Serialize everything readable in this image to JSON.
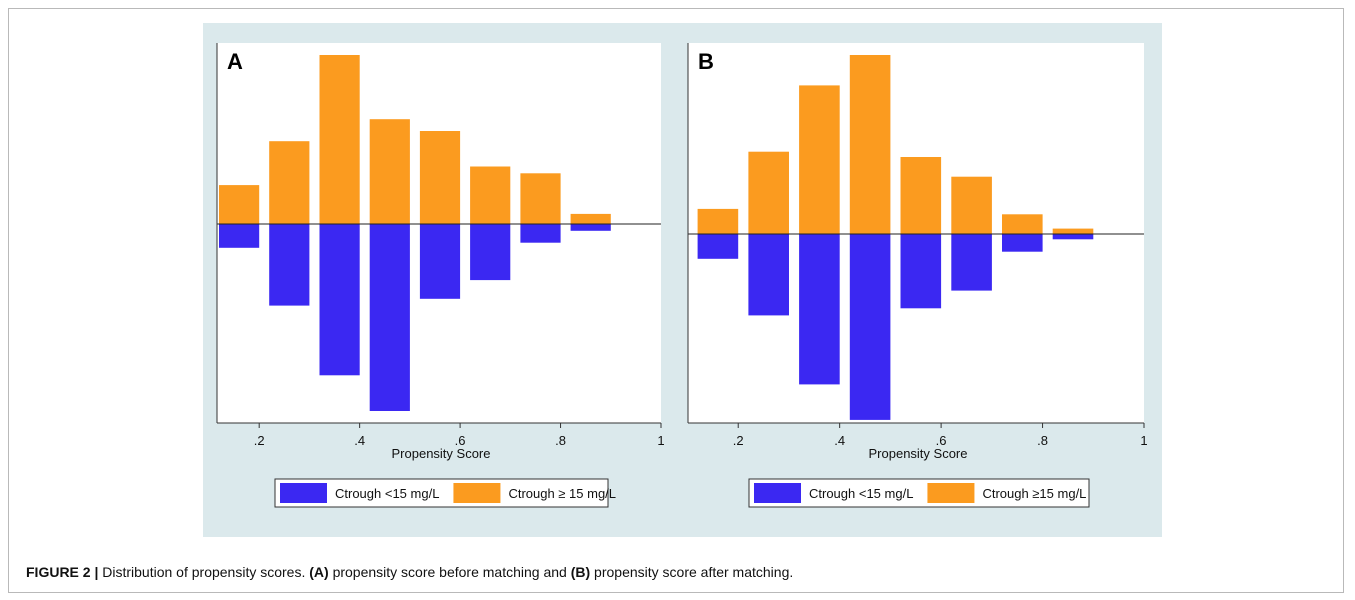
{
  "caption": {
    "label": "FIGURE 2 |",
    "text_1": " Distribution of propensity scores. ",
    "a_ref": "(A)",
    "text_2": " propensity score before matching and ",
    "b_ref": "(B)",
    "text_3": " propensity score after matching."
  },
  "colors": {
    "lower": "#3b28f2",
    "upper": "#fb9b1f",
    "figure_bg": "#dbe9ec"
  },
  "chart_data": [
    {
      "type": "bar",
      "panel_label": "A",
      "xlabel": "Propensity Score",
      "ylabel": "",
      "xlim": [
        0.1,
        1.0
      ],
      "x_ticks": [
        0.2,
        0.4,
        0.6,
        0.8,
        1.0
      ],
      "x_tick_labels": [
        ".2",
        ".4",
        ".6",
        ".8",
        "1"
      ],
      "bin_width": 0.1,
      "ylim": [
        -1.1,
        1.0
      ],
      "y_axis_labels_shown": false,
      "legend_position": "bottom",
      "series": [
        {
          "name": "Ctrough ≥ 15 mg/L",
          "color": "#fb9b1f",
          "bins": [
            0.1,
            0.2,
            0.3,
            0.4,
            0.5,
            0.6,
            0.7,
            0.8
          ],
          "values": [
            0.23,
            0.49,
            1.0,
            0.62,
            0.55,
            0.34,
            0.3,
            0.06
          ]
        },
        {
          "name": "Ctrough <15 mg/L",
          "color": "#3b28f2",
          "bins": [
            0.1,
            0.2,
            0.3,
            0.4,
            0.5,
            0.6,
            0.7,
            0.8
          ],
          "values": [
            -0.14,
            -0.48,
            -0.89,
            -1.1,
            -0.44,
            -0.33,
            -0.11,
            -0.04
          ]
        }
      ]
    },
    {
      "type": "bar",
      "panel_label": "B",
      "xlabel": "Propensity Score",
      "ylabel": "",
      "xlim": [
        0.1,
        1.0
      ],
      "x_ticks": [
        0.2,
        0.4,
        0.6,
        0.8,
        1.0
      ],
      "x_tick_labels": [
        ".2",
        ".4",
        ".6",
        ".8",
        "1"
      ],
      "bin_width": 0.1,
      "ylim": [
        -1.0,
        1.0
      ],
      "y_axis_labels_shown": false,
      "legend_position": "bottom",
      "series": [
        {
          "name": "Ctrough ≥15 mg/L",
          "color": "#fb9b1f",
          "bins": [
            0.1,
            0.2,
            0.3,
            0.4,
            0.5,
            0.6,
            0.7,
            0.8
          ],
          "values": [
            0.14,
            0.46,
            0.83,
            1.0,
            0.43,
            0.32,
            0.11,
            0.03
          ]
        },
        {
          "name": "Ctrough <15 mg/L",
          "color": "#3b28f2",
          "bins": [
            0.1,
            0.2,
            0.3,
            0.4,
            0.5,
            0.6,
            0.7,
            0.8
          ],
          "values": [
            -0.14,
            -0.46,
            -0.85,
            -1.05,
            -0.42,
            -0.32,
            -0.1,
            -0.03
          ]
        }
      ]
    }
  ]
}
